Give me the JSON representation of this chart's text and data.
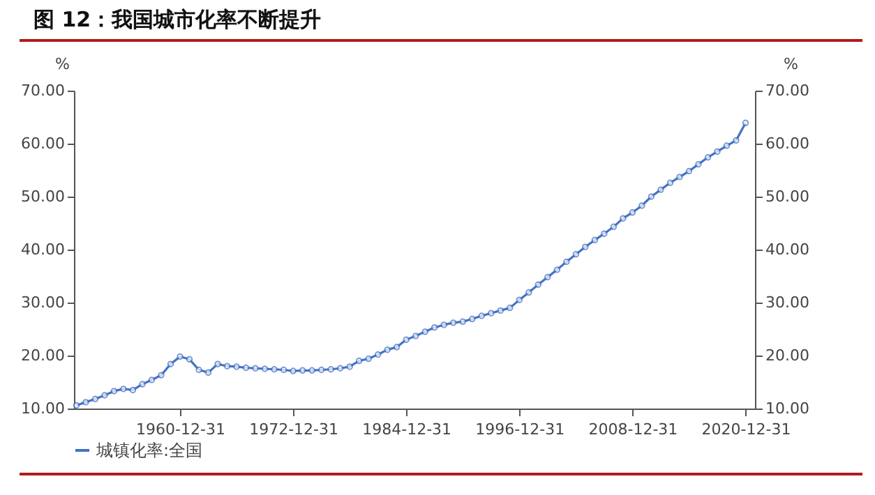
{
  "chart_data": {
    "type": "line",
    "title": "图 12：我国城市化率不断提升",
    "ylabel": "%",
    "y2label": "%",
    "legend": "bottom",
    "marker": "circle",
    "line_style": "solid",
    "grid": false,
    "x": [
      "1949-12-31",
      "1950-12-31",
      "1951-12-31",
      "1952-12-31",
      "1953-12-31",
      "1954-12-31",
      "1955-12-31",
      "1956-12-31",
      "1957-12-31",
      "1958-12-31",
      "1959-12-31",
      "1960-12-31",
      "1961-12-31",
      "1962-12-31",
      "1963-12-31",
      "1964-12-31",
      "1965-12-31",
      "1966-12-31",
      "1967-12-31",
      "1968-12-31",
      "1969-12-31",
      "1970-12-31",
      "1971-12-31",
      "1972-12-31",
      "1973-12-31",
      "1974-12-31",
      "1975-12-31",
      "1976-12-31",
      "1977-12-31",
      "1978-12-31",
      "1979-12-31",
      "1980-12-31",
      "1981-12-31",
      "1982-12-31",
      "1983-12-31",
      "1984-12-31",
      "1985-12-31",
      "1986-12-31",
      "1987-12-31",
      "1988-12-31",
      "1989-12-31",
      "1990-12-31",
      "1991-12-31",
      "1992-12-31",
      "1993-12-31",
      "1994-12-31",
      "1995-12-31",
      "1996-12-31",
      "1997-12-31",
      "1998-12-31",
      "1999-12-31",
      "2000-12-31",
      "2001-12-31",
      "2002-12-31",
      "2003-12-31",
      "2004-12-31",
      "2005-12-31",
      "2006-12-31",
      "2007-12-31",
      "2008-12-31",
      "2009-12-31",
      "2010-12-31",
      "2011-12-31",
      "2012-12-31",
      "2013-12-31",
      "2014-12-31",
      "2015-12-31",
      "2016-12-31",
      "2017-12-31",
      "2018-12-31",
      "2019-12-31",
      "2020-12-31"
    ],
    "series": [
      {
        "name": "城镇化率:全国",
        "color": "#4472c4",
        "values": [
          10.6,
          11.2,
          11.8,
          12.5,
          13.3,
          13.7,
          13.5,
          14.6,
          15.4,
          16.3,
          18.4,
          19.8,
          19.3,
          17.3,
          16.8,
          18.4,
          18.0,
          17.9,
          17.7,
          17.6,
          17.5,
          17.4,
          17.3,
          17.1,
          17.2,
          17.2,
          17.3,
          17.4,
          17.6,
          17.9,
          19.0,
          19.4,
          20.2,
          21.1,
          21.6,
          23.0,
          23.7,
          24.5,
          25.3,
          25.8,
          26.2,
          26.4,
          26.9,
          27.5,
          28.0,
          28.5,
          29.0,
          30.5,
          31.9,
          33.4,
          34.8,
          36.2,
          37.7,
          39.1,
          40.5,
          41.8,
          43.0,
          44.3,
          45.9,
          47.0,
          48.3,
          50.0,
          51.3,
          52.6,
          53.7,
          54.8,
          56.1,
          57.4,
          58.5,
          59.6,
          60.6,
          63.9
        ]
      }
    ],
    "xlim": [
      "1949-09-30",
      "2021-12-31"
    ],
    "xticks": [
      "1960-12-31",
      "1972-12-31",
      "1984-12-31",
      "1996-12-31",
      "2008-12-31",
      "2020-12-31"
    ],
    "ylim": [
      10,
      70
    ],
    "yticks": [
      {
        "value": 10,
        "label": "10.00"
      },
      {
        "value": 20,
        "label": "20.00"
      },
      {
        "value": 30,
        "label": "30.00"
      },
      {
        "value": 40,
        "label": "40.00"
      },
      {
        "value": 50,
        "label": "50.00"
      },
      {
        "value": 60,
        "label": "60.00"
      },
      {
        "value": 70,
        "label": "70.00"
      }
    ],
    "y2lim": [
      10,
      70
    ],
    "y2ticks": [
      {
        "value": 10,
        "label": "10.00"
      },
      {
        "value": 20,
        "label": "20.00"
      },
      {
        "value": 30,
        "label": "30.00"
      },
      {
        "value": 40,
        "label": "40.00"
      },
      {
        "value": 50,
        "label": "50.00"
      },
      {
        "value": 60,
        "label": "60.00"
      },
      {
        "value": 70,
        "label": "70.00"
      }
    ]
  }
}
